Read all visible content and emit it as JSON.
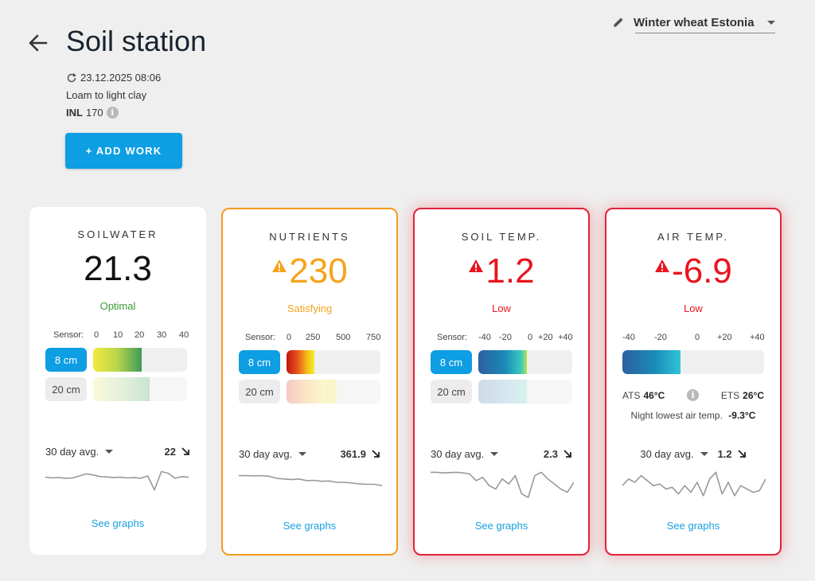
{
  "header": {
    "title": "Soil station",
    "timestamp": "23.12.2025 08:06",
    "soil_type": "Loam to light clay",
    "inl_label": "INL",
    "inl_value": "170",
    "add_button": "+ ADD WORK",
    "field_selector": "Winter wheat Estonia"
  },
  "cards": [
    {
      "title": "SOILWATER",
      "value": "21.3",
      "status": "Optimal",
      "colors": {
        "value": "#111111",
        "status": "#3a9a3a"
      },
      "scale_label": "Sensor:",
      "scale_ticks": [
        "0",
        "10",
        "20",
        "30",
        "40"
      ],
      "rows": [
        {
          "depth": "8 cm",
          "fill_fraction": 0.52
        },
        {
          "depth": "20 cm",
          "fill_fraction": 0.6
        }
      ],
      "avg_label": "30 day avg.",
      "avg_value": "22",
      "link": "See graphs",
      "sparkline": [
        0.42,
        0.44,
        0.43,
        0.45,
        0.44,
        0.38,
        0.32,
        0.35,
        0.4,
        0.41,
        0.43,
        0.42,
        0.44,
        0.43,
        0.45,
        0.38,
        0.8,
        0.25,
        0.3,
        0.45,
        0.4,
        0.42
      ]
    },
    {
      "title": "NUTRIENTS",
      "value": "230",
      "status": "Satisfying",
      "colors": {
        "value": "#f5a41c",
        "status": "#f5a41c"
      },
      "scale_label": "Sensor:",
      "scale_ticks": [
        "0",
        "250",
        "500",
        "750"
      ],
      "rows": [
        {
          "depth": "8 cm",
          "fill_fraction": 0.3
        },
        {
          "depth": "20 cm",
          "fill_fraction": 0.53
        }
      ],
      "avg_label": "30 day avg.",
      "avg_value": "361.9",
      "link": "See graphs",
      "sparkline": [
        0.3,
        0.3,
        0.31,
        0.3,
        0.32,
        0.38,
        0.4,
        0.42,
        0.4,
        0.45,
        0.44,
        0.47,
        0.46,
        0.5,
        0.5,
        0.52,
        0.55,
        0.56,
        0.56,
        0.6
      ]
    },
    {
      "title": "SOIL TEMP.",
      "value": "1.2",
      "status": "Low",
      "colors": {
        "value": "#e8141f",
        "status": "#e8141f"
      },
      "scale_label": "Sensor:",
      "scale_ticks": [
        "-40",
        "-20",
        "0",
        "+20",
        "+40"
      ],
      "rows": [
        {
          "depth": "8 cm",
          "fill_fraction": 0.52
        },
        {
          "depth": "20 cm",
          "fill_fraction": 0.52
        }
      ],
      "avg_label": "30 day avg.",
      "avg_value": "2.3",
      "link": "See graphs",
      "sparkline": [
        0.2,
        0.2,
        0.22,
        0.21,
        0.2,
        0.22,
        0.25,
        0.45,
        0.35,
        0.6,
        0.7,
        0.4,
        0.55,
        0.3,
        0.85,
        0.95,
        0.3,
        0.2,
        0.4,
        0.55,
        0.7,
        0.8,
        0.5
      ]
    },
    {
      "title": "AIR TEMP.",
      "value": "-6.9",
      "status": "Low",
      "colors": {
        "value": "#e8141f",
        "status": "#e8141f"
      },
      "scale_ticks": [
        "-40",
        "-20",
        "0",
        "+20",
        "+40"
      ],
      "air_fill_fraction": 0.41,
      "ats_label": "ATS",
      "ats_value": "46°C",
      "ets_label": "ETS",
      "ets_value": "26°C",
      "night_label": "Night lowest air temp.",
      "night_value": "-9.3°C",
      "avg_label": "30 day avg.",
      "avg_value": "1.2",
      "link": "See graphs",
      "sparkline": [
        0.6,
        0.4,
        0.5,
        0.3,
        0.45,
        0.6,
        0.55,
        0.7,
        0.65,
        0.85,
        0.6,
        0.8,
        0.5,
        0.9,
        0.4,
        0.2,
        0.85,
        0.5,
        0.9,
        0.6,
        0.7,
        0.8,
        0.75,
        0.4
      ]
    }
  ],
  "icons": {
    "back": "arrow-left-icon",
    "refresh": "refresh-icon",
    "info": "info-icon",
    "edit": "pencil-icon",
    "warning": "warning-triangle-icon",
    "trend": "trend-down-arrow-icon"
  }
}
